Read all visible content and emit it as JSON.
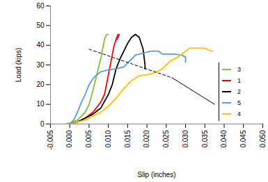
{
  "chart_data": {
    "type": "line",
    "xlabel": "Slip (inches)",
    "ylabel": "Load (kips)",
    "xlim": [
      -0.005,
      0.05
    ],
    "ylim": [
      0,
      60
    ],
    "xticks": [
      {
        "value": -0.005,
        "label": "-0.005"
      },
      {
        "value": 0,
        "label": "0.000"
      },
      {
        "value": 0.005,
        "label": "0.005"
      },
      {
        "value": 0.01,
        "label": "0.010"
      },
      {
        "value": 0.015,
        "label": "0.015"
      },
      {
        "value": 0.02,
        "label": "0.020"
      },
      {
        "value": 0.025,
        "label": "0.025"
      },
      {
        "value": 0.03,
        "label": "0.030"
      },
      {
        "value": 0.035,
        "label": "0.035"
      },
      {
        "value": 0.04,
        "label": "0.040"
      },
      {
        "value": 0.045,
        "label": "0.045"
      },
      {
        "value": 0.05,
        "label": "0.050"
      }
    ],
    "yticks": [
      0,
      10,
      20,
      30,
      40,
      50,
      60
    ],
    "legend": "right",
    "series": [
      {
        "name": "3",
        "color": "#7dc242",
        "x": [
          -0.001,
          0,
          0.002,
          0.004,
          0.005,
          0.006,
          0.007,
          0.008,
          0.0085,
          0.009,
          0.0095,
          0.01
        ],
        "values": [
          0,
          0.5,
          2,
          6,
          10,
          17,
          25,
          33,
          38,
          43,
          45.5,
          45.5
        ]
      },
      {
        "name": "1",
        "color": "#ff0000",
        "x": [
          0,
          0.002,
          0.004,
          0.006,
          0.008,
          0.009,
          0.01,
          0.011,
          0.0115,
          0.012,
          0.0125,
          0.0122,
          0.0128
        ],
        "values": [
          0,
          1,
          3,
          6,
          11,
          15,
          25,
          35,
          40,
          43,
          45.5,
          43,
          45.5
        ]
      },
      {
        "name": "2",
        "color": "#000000",
        "x": [
          0,
          0.002,
          0.004,
          0.006,
          0.008,
          0.01,
          0.011,
          0.012,
          0.013,
          0.014,
          0.015,
          0.016,
          0.017,
          0.018,
          0.019,
          0.0195,
          0.0195
        ],
        "values": [
          0,
          1,
          3,
          5,
          8,
          15,
          20,
          28,
          33,
          37,
          41,
          44,
          45.5,
          44,
          38,
          30,
          28
        ]
      },
      {
        "name": "5",
        "color": "#5b9bd5",
        "x": [
          0,
          0.001,
          0.002,
          0.003,
          0.004,
          0.005,
          0.006,
          0.007,
          0.008,
          0.01,
          0.012,
          0.014,
          0.015,
          0.016,
          0.017,
          0.019,
          0.021,
          0.023,
          0.024,
          0.027,
          0.029,
          0.03,
          0.03
        ],
        "values": [
          0,
          2,
          6,
          11,
          15,
          20,
          23,
          25,
          26.5,
          27.5,
          28,
          29,
          31,
          33,
          35,
          36,
          37,
          37,
          35.5,
          35.5,
          35,
          34,
          31.5
        ]
      },
      {
        "name": "4",
        "color": "#ffc000",
        "x": [
          0,
          0.002,
          0.004,
          0.006,
          0.008,
          0.01,
          0.012,
          0.014,
          0.016,
          0.018,
          0.02,
          0.022,
          0.024,
          0.025,
          0.026,
          0.028,
          0.03,
          0.031,
          0.034,
          0.035,
          0.036,
          0.037
        ],
        "values": [
          0,
          1,
          2,
          4,
          6,
          9,
          13,
          18,
          22,
          24.5,
          25,
          26,
          28,
          30,
          32,
          34,
          37,
          38.5,
          38.5,
          38.5,
          37.5,
          37
        ]
      },
      {
        "color": "#000000",
        "line_style": "dashed",
        "x": [
          0.005,
          0.0265
        ],
        "values": [
          38,
          23.5
        ]
      },
      {
        "color": "#000000",
        "line_style": "solid",
        "x": [
          0.0265,
          0.0375
        ],
        "values": [
          23.5,
          10
        ]
      }
    ]
  }
}
